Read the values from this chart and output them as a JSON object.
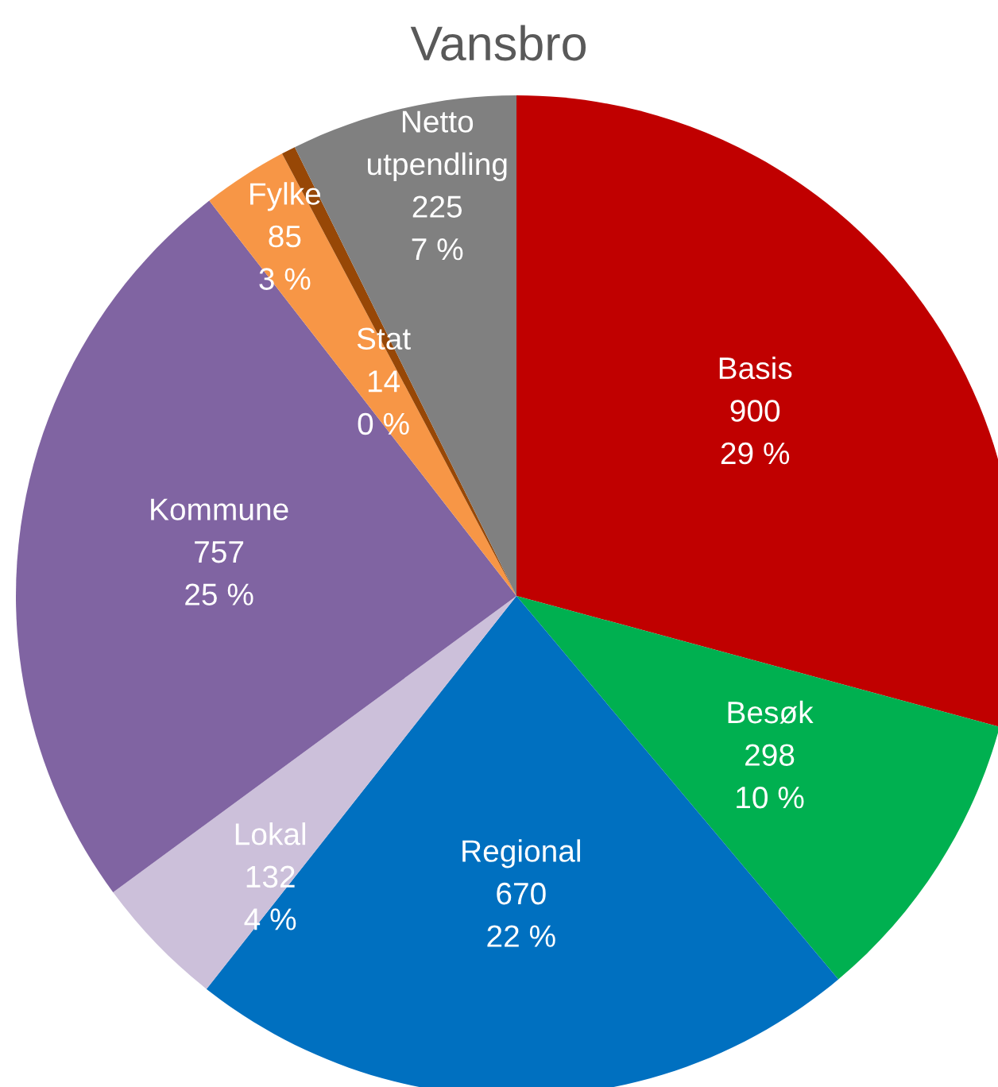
{
  "chart_data": {
    "type": "pie",
    "title": "Vansbro",
    "categories": [
      "Basis",
      "Besøk",
      "Regional",
      "Lokal",
      "Kommune",
      "Fylke",
      "Stat",
      "Netto utpendling"
    ],
    "values": [
      900,
      298,
      670,
      132,
      757,
      85,
      14,
      225
    ],
    "data_labels": true,
    "annotations": [
      {
        "text": "29 %",
        "x": "Basis"
      },
      {
        "text": "10 %",
        "x": "Besøk"
      },
      {
        "text": "22 %",
        "x": "Regional"
      },
      {
        "text": "4 %",
        "x": "Lokal"
      },
      {
        "text": "25 %",
        "x": "Kommune"
      },
      {
        "text": "3 %",
        "x": "Fylke"
      },
      {
        "text": "0 %",
        "x": "Stat"
      },
      {
        "text": "7 %",
        "x": "Netto utpendling"
      }
    ],
    "colors": [
      "#c00000",
      "#00b050",
      "#0070c0",
      "#ccc0da",
      "#8064a2",
      "#f79646",
      "#974706",
      "#808080"
    ]
  }
}
